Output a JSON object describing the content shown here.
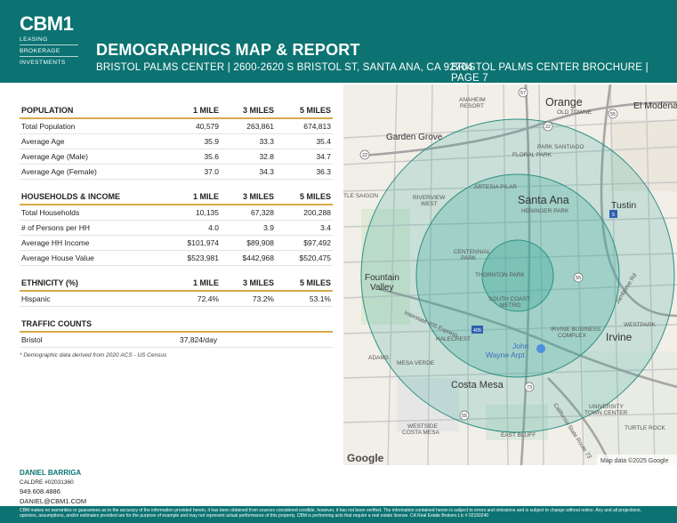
{
  "header": {
    "logo": "CBM1",
    "logo_lines": [
      "LEASING",
      "BROKERAGE",
      "INVESTMENTS"
    ],
    "title": "DEMOGRAPHICS MAP & REPORT",
    "subtitle": "BRISTOL PALMS CENTER | 2600-2620 S BRISTOL ST, SANTA ANA, CA 92704",
    "page_label": "BRISTOL PALMS CENTER BROCHURE | PAGE 7"
  },
  "population": {
    "heading": "POPULATION",
    "cols": [
      "1 MILE",
      "3 MILES",
      "5 MILES"
    ],
    "rows": [
      {
        "label": "Total Population",
        "v": [
          "40,579",
          "263,861",
          "674,813"
        ]
      },
      {
        "label": "Average Age",
        "v": [
          "35.9",
          "33.3",
          "35.4"
        ]
      },
      {
        "label": "Average Age (Male)",
        "v": [
          "35.6",
          "32.8",
          "34.7"
        ]
      },
      {
        "label": "Average Age (Female)",
        "v": [
          "37.0",
          "34.3",
          "36.3"
        ]
      }
    ]
  },
  "households": {
    "heading": "HOUSEHOLDS & INCOME",
    "cols": [
      "1 MILE",
      "3 MILES",
      "5 MILES"
    ],
    "rows": [
      {
        "label": "Total Households",
        "v": [
          "10,135",
          "67,328",
          "200,288"
        ]
      },
      {
        "label": "# of Persons per HH",
        "v": [
          "4.0",
          "3.9",
          "3.4"
        ]
      },
      {
        "label": "Average HH Income",
        "v": [
          "$101,974",
          "$89,908",
          "$97,492"
        ]
      },
      {
        "label": "Average House Value",
        "v": [
          "$523,981",
          "$442,968",
          "$520,475"
        ]
      }
    ]
  },
  "ethnicity": {
    "heading": "ETHNICITY (%)",
    "cols": [
      "1 MILE",
      "3 MILES",
      "5 MILES"
    ],
    "rows": [
      {
        "label": "Hispanic",
        "v": [
          "72.4%",
          "73.2%",
          "53.1%"
        ]
      }
    ]
  },
  "traffic": {
    "heading": "TRAFFIC COUNTS",
    "rows": [
      {
        "label": "Bristol",
        "value": "37,824/day"
      }
    ],
    "note": "* Demographic data derived from 2020 ACS - US Census"
  },
  "map": {
    "labels": {
      "anaheim": "ANAHEIM",
      "resort": "RESORT",
      "orange": "Orange",
      "old_towne": "OLD TOWNE",
      "el_modena": "El Modena",
      "garden_grove": "Garden Grove",
      "park_santiago": "PARK SANTIAGO",
      "floral_park": "FLORAL PARK",
      "little_saigon": "TLE SAIGON",
      "riverview": "RIVERVIEW",
      "west": "WEST",
      "artesia_pilar": "ARTESIA PILAR",
      "santa_ana": "Santa Ana",
      "heninger_park": "HENINGER PARK",
      "tustin": "Tustin",
      "centennial": "CENTENNIAL",
      "park": "PARK",
      "thornton_park": "THORNTON PARK",
      "fountain": "Fountain",
      "valley": "Valley",
      "south_coast": "SOUTH COAST",
      "metro": "METRO",
      "jamboree": "Jamboree Rd",
      "i405": "Interstate 405 Express",
      "westpark": "WESTPARK",
      "halecrest": "HALECREST",
      "irvine_business": "IRVINE BUSINESS",
      "complex": "COMPLEX",
      "irvine": "Irvine",
      "adams": "ADAMS",
      "mesa_verde": "MESA VERDE",
      "john_wayne": "John",
      "wayne_arpt": "Wayne Arpt",
      "costa_mesa": "Costa Mesa",
      "university": "UNIVERSITY",
      "town_center": "TOWN CENTER",
      "westside": "WESTSIDE",
      "costa_mesa_small": "COSTA MESA",
      "east_bluff": "EAST BLUFF",
      "turtle_rock": "TURTLE ROCK",
      "route73": "California State Route 73",
      "shield_57": "57",
      "shield_22": "22",
      "shield_22b": "22",
      "shield_55": "55",
      "shield_55b": "55",
      "shield_55c": "55",
      "shield_5": "5",
      "shield_405": "405",
      "shield_73": "73",
      "google": "Google",
      "attribution": "Map data ©2025 Google"
    }
  },
  "contact": {
    "name": "DANIEL BARRIGA",
    "license": "CALDRE #02031360",
    "phone": "949.608.4886",
    "email": "DANIEL@CBM1.COM"
  },
  "disclaimer": "CBM makes no warranties or guarantees as to the accuracy of the information provided herein, it has been obtained from sources considered credible, however, it has not been verified. The information contained herein is subject to errors and omissions and is subject to change without notice. Any and all projections, opinions, assumptions, and/or estimates provided are for the purpose of example and may not represent actual performance of this property. CBM is performing acts that require a real estate license. CA Real Estate Brokers Lic # 02150240",
  "colors": {
    "brand": "#0c7372",
    "accent": "#d9a94a",
    "radius_fill": "#3aa99a"
  }
}
